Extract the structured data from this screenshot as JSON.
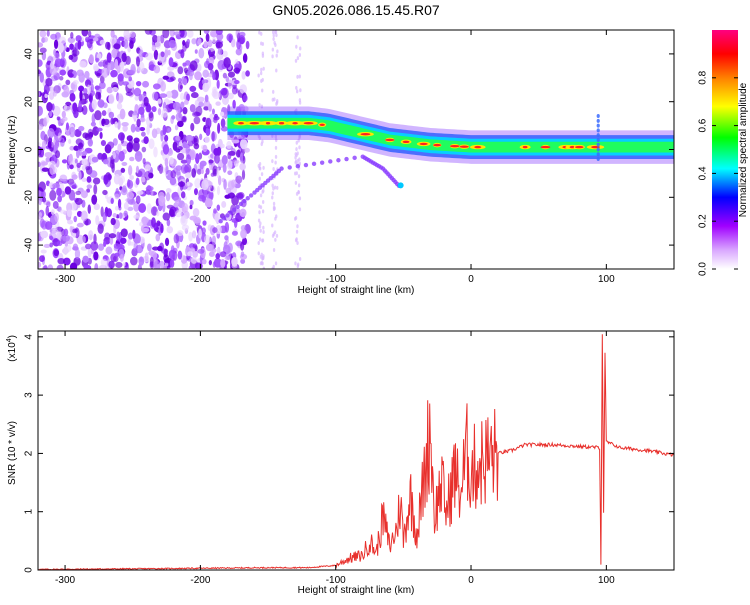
{
  "title": "GN05.2026.086.15.45.R07",
  "chart_data": [
    {
      "type": "heatmap",
      "title": "GN05.2026.086.15.45.R07",
      "xlabel": "Height of straight line (km)",
      "ylabel": "Frequency (Hz)",
      "xlim": [
        -320,
        150
      ],
      "ylim": [
        -50,
        50
      ],
      "xticks": [
        -300,
        -200,
        -100,
        0,
        100
      ],
      "yticks": [
        -40,
        -20,
        0,
        20,
        40
      ],
      "colorbar": {
        "label": "Normalized spectral amplitude",
        "range": [
          0,
          1
        ],
        "ticks": [
          0.0,
          0.2,
          0.4,
          0.6,
          0.8
        ],
        "tick_labels": [
          "0.0",
          "0.2",
          "0.4",
          "0.6",
          "0.8"
        ],
        "colormap": [
          "#ffffff",
          "#a000ff",
          "#0000ff",
          "#00ffff",
          "#00ff00",
          "#ffff00",
          "#ff8000",
          "#ff0000",
          "#ff0080"
        ]
      },
      "band_track": [
        {
          "x": -180,
          "y": 11
        },
        {
          "x": -150,
          "y": 11
        },
        {
          "x": -120,
          "y": 11
        },
        {
          "x": -105,
          "y": 10
        },
        {
          "x": -90,
          "y": 8
        },
        {
          "x": -75,
          "y": 6
        },
        {
          "x": -60,
          "y": 4
        },
        {
          "x": -45,
          "y": 3
        },
        {
          "x": -30,
          "y": 2
        },
        {
          "x": -15,
          "y": 1.5
        },
        {
          "x": 0,
          "y": 1
        },
        {
          "x": 50,
          "y": 1
        },
        {
          "x": 100,
          "y": 1
        },
        {
          "x": 150,
          "y": 1
        }
      ],
      "secondary_track": [
        {
          "x": -185,
          "y": -30
        },
        {
          "x": -160,
          "y": -18
        },
        {
          "x": -140,
          "y": -8
        },
        {
          "x": -80,
          "y": -3
        },
        {
          "x": -65,
          "y": -8
        },
        {
          "x": -52,
          "y": -16
        }
      ],
      "noise_region": [
        -320,
        -175
      ],
      "grid": false
    },
    {
      "type": "line",
      "xlabel": "Height of straight line (km)",
      "ylabel": "SNR (10 * v/v)",
      "y_multiplier_label": "(x10",
      "y_multiplier_exp": "4",
      "y_multiplier_close": ")",
      "xlim": [
        -320,
        150
      ],
      "ylim": [
        0,
        4.1
      ],
      "xticks": [
        -300,
        -200,
        -100,
        0,
        100
      ],
      "yticks": [
        0,
        1,
        2,
        3,
        4
      ],
      "color": "#e8302c",
      "grid": false,
      "series": [
        {
          "points": [
            [
              -320,
              0.01
            ],
            [
              -250,
              0.02
            ],
            [
              -200,
              0.03
            ],
            [
              -150,
              0.04
            ],
            [
              -120,
              0.04
            ],
            [
              -100,
              0.08
            ],
            [
              -90,
              0.2
            ],
            [
              -80,
              0.25
            ],
            [
              -75,
              0.5
            ],
            [
              -70,
              0.3
            ],
            [
              -65,
              0.9
            ],
            [
              -60,
              0.4
            ],
            [
              -55,
              0.7
            ],
            [
              -52,
              1.2
            ],
            [
              -50,
              0.5
            ],
            [
              -45,
              1.3
            ],
            [
              -40,
              0.6
            ],
            [
              -35,
              1.5
            ],
            [
              -30,
              2.5
            ],
            [
              -27,
              0.9
            ],
            [
              -22,
              1.5
            ],
            [
              -18,
              1.0
            ],
            [
              -12,
              1.7
            ],
            [
              -8,
              1.3
            ],
            [
              -3,
              2.0
            ],
            [
              0,
              1.7
            ],
            [
              10,
              1.9
            ],
            [
              20,
              2.0
            ],
            [
              30,
              2.05
            ],
            [
              40,
              2.15
            ],
            [
              60,
              2.15
            ],
            [
              80,
              2.12
            ],
            [
              95,
              2.1
            ],
            [
              96,
              0.1
            ],
            [
              97,
              4.05
            ],
            [
              98,
              1.0
            ],
            [
              99,
              3.7
            ],
            [
              100,
              2.2
            ],
            [
              110,
              2.1
            ],
            [
              130,
              2.05
            ],
            [
              150,
              1.97
            ]
          ]
        }
      ]
    }
  ]
}
